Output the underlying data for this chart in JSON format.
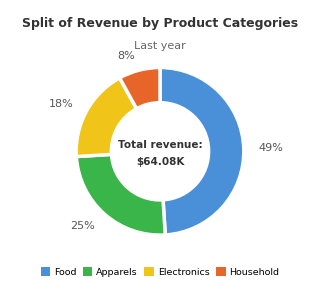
{
  "title": "Split of Revenue by Product Categories",
  "subtitle": "Last year",
  "center_text_line1": "Total revenue:",
  "center_text_line2": "$64.08K",
  "categories": [
    "Food",
    "Apparels",
    "Electronics",
    "Household"
  ],
  "values": [
    49,
    25,
    18,
    8
  ],
  "colors": [
    "#4a90d9",
    "#3ab54a",
    "#f0c419",
    "#e8652a"
  ],
  "background_color": "#ffffff",
  "donut_width": 0.42
}
